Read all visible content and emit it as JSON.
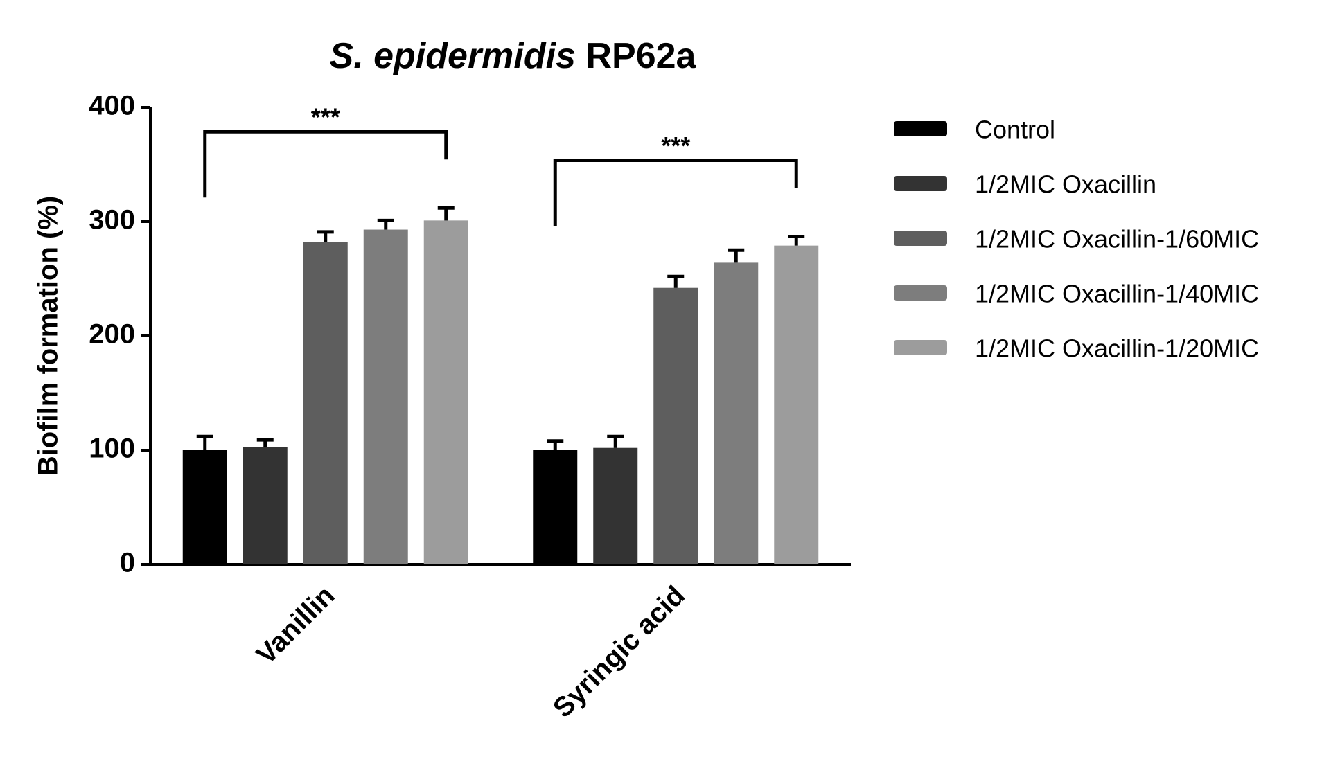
{
  "chart_data": {
    "type": "bar",
    "title_species": "S. epidermidis",
    "title_strain": "RP62a",
    "ylabel": "Biofilm formation (%)",
    "categories": [
      "Vanillin",
      "Syringic acid"
    ],
    "series": [
      {
        "name": "Control",
        "color": "#000000",
        "values": [
          100,
          100
        ],
        "errors": [
          12,
          8
        ]
      },
      {
        "name": "1/2MIC Oxacillin",
        "color": "#333333",
        "values": [
          103,
          102
        ],
        "errors": [
          6,
          10
        ]
      },
      {
        "name": "1/2MIC Oxacillin-1/60MIC",
        "color": "#5e5e5e",
        "values": [
          282,
          242
        ],
        "errors": [
          9,
          10
        ]
      },
      {
        "name": "1/2MIC Oxacillin-1/40MIC",
        "color": "#7d7d7d",
        "values": [
          293,
          264
        ],
        "errors": [
          8,
          11
        ]
      },
      {
        "name": "1/2MIC Oxacillin-1/20MIC",
        "color": "#9c9c9c",
        "values": [
          301,
          279
        ],
        "errors": [
          11,
          8
        ]
      }
    ],
    "annotations": [
      "***",
      "***"
    ],
    "ylim": [
      0,
      400
    ],
    "yticks": [
      0,
      100,
      200,
      300,
      400
    ],
    "grid": false,
    "legend": "right"
  }
}
